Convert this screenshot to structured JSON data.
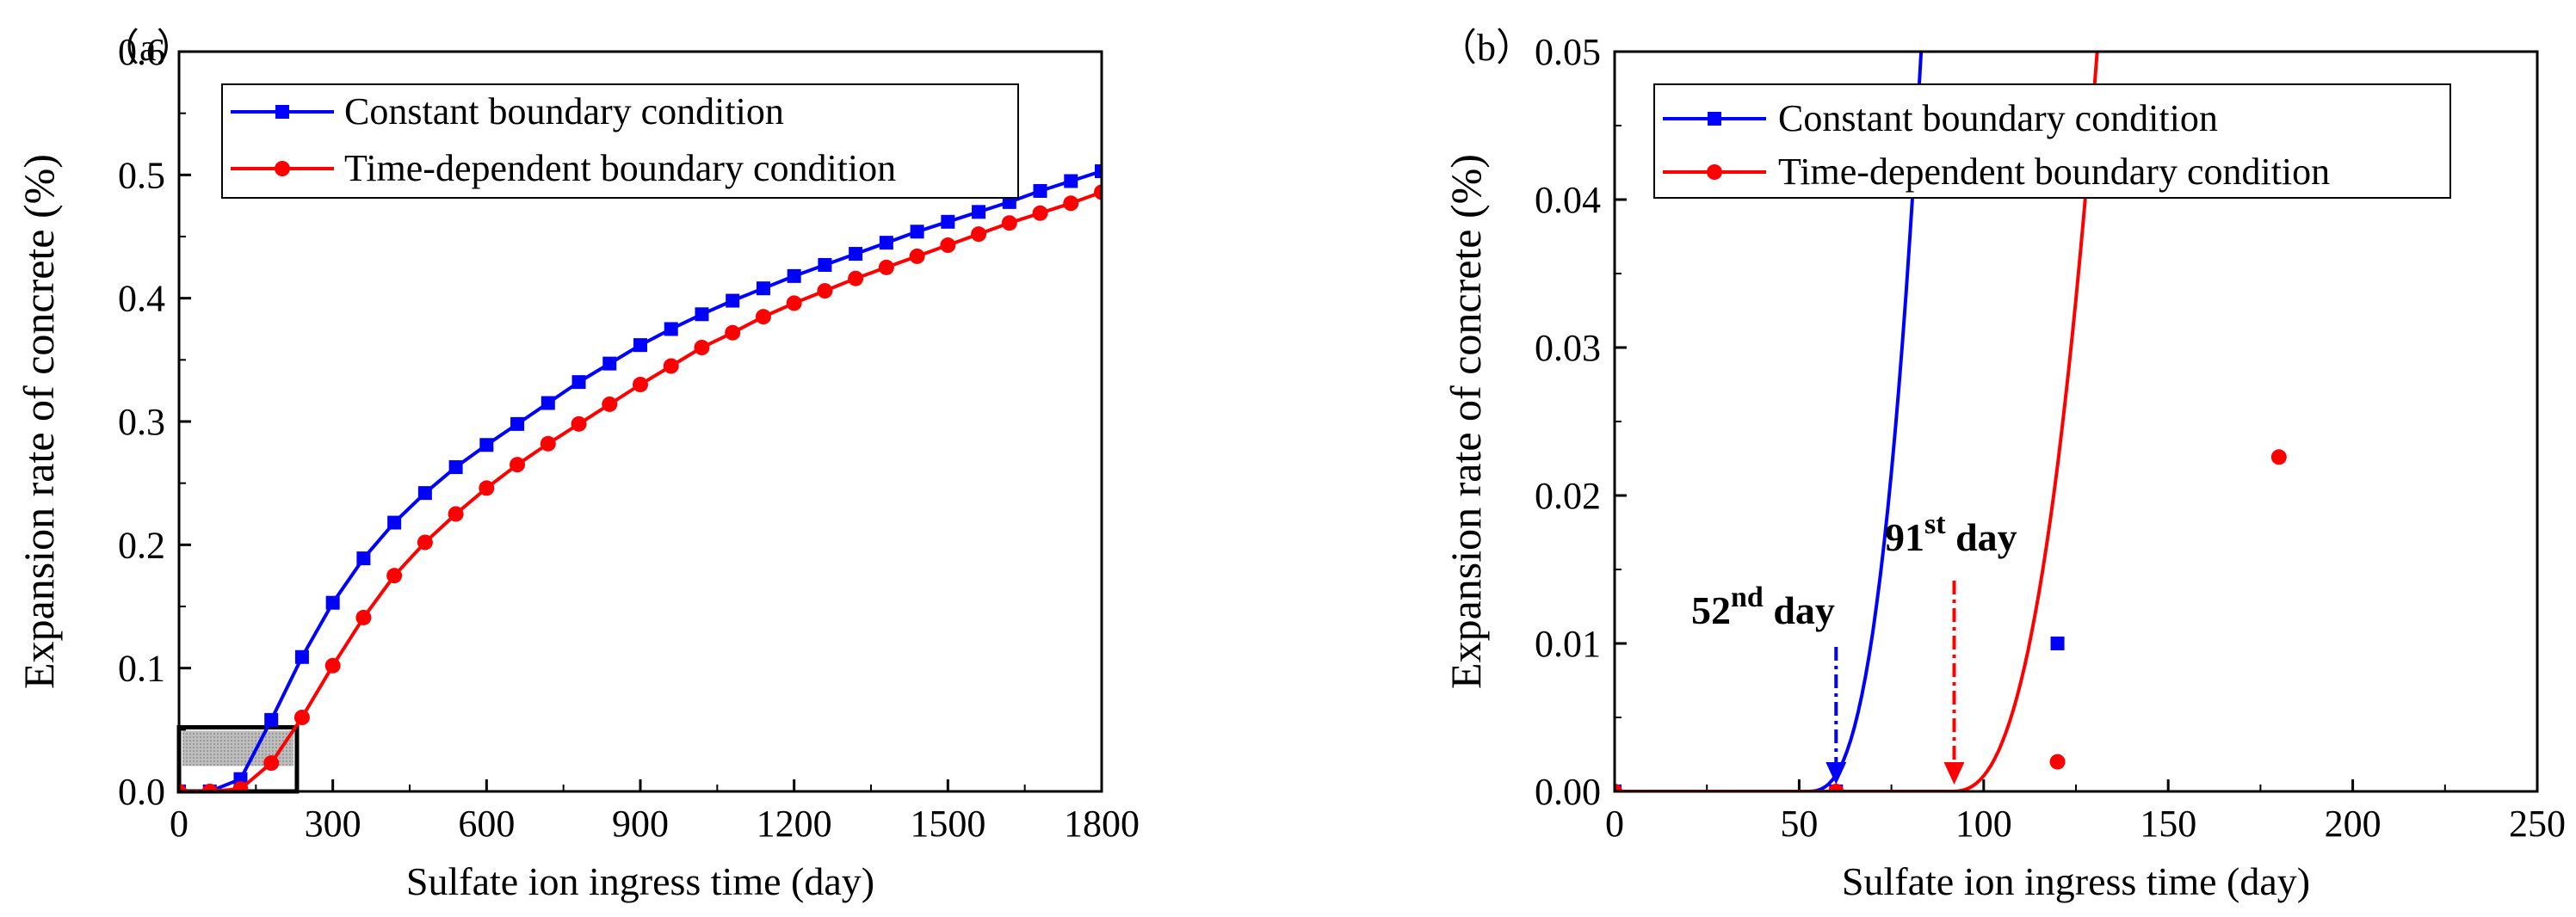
{
  "chart_data": [
    {
      "panel_label": "（a）",
      "type": "line",
      "xlabel": "Sulfate ion  ingress time (day)",
      "ylabel": "Expansion rate  of concrete (%)",
      "xlim": [
        0,
        1800
      ],
      "ylim": [
        0,
        0.6
      ],
      "xticks": [
        "0",
        "300",
        "600",
        "900",
        "1200",
        "1500",
        "1800"
      ],
      "yticks": [
        "0.0",
        "0.1",
        "0.2",
        "0.3",
        "0.4",
        "0.5",
        "0.6"
      ],
      "zoom_box": {
        "x_range": [
          0,
          230
        ],
        "y_range": [
          0,
          0.052
        ]
      },
      "legend": "top-left",
      "series": [
        {
          "name": "Constant boundary condition",
          "color": "#0000ff",
          "marker": "square",
          "x": [
            0,
            60,
            120,
            180,
            240,
            300,
            360,
            420,
            480,
            540,
            600,
            660,
            720,
            780,
            840,
            900,
            960,
            1020,
            1080,
            1140,
            1200,
            1260,
            1320,
            1380,
            1440,
            1500,
            1560,
            1620,
            1680,
            1740,
            1800
          ],
          "y": [
            0.0,
            0.0,
            0.01,
            0.058,
            0.109,
            0.153,
            0.189,
            0.218,
            0.242,
            0.263,
            0.281,
            0.298,
            0.315,
            0.332,
            0.347,
            0.362,
            0.375,
            0.387,
            0.398,
            0.408,
            0.418,
            0.427,
            0.436,
            0.445,
            0.454,
            0.462,
            0.47,
            0.478,
            0.487,
            0.495,
            0.503
          ]
        },
        {
          "name": "Time-dependent boundary condition",
          "color": "#ff0000",
          "marker": "circle",
          "x": [
            0,
            60,
            120,
            180,
            240,
            300,
            360,
            420,
            480,
            540,
            600,
            660,
            720,
            780,
            840,
            900,
            960,
            1020,
            1080,
            1140,
            1200,
            1260,
            1320,
            1380,
            1440,
            1500,
            1560,
            1620,
            1680,
            1740,
            1800
          ],
          "y": [
            0.0,
            0.0,
            0.002,
            0.023,
            0.06,
            0.102,
            0.141,
            0.175,
            0.202,
            0.225,
            0.246,
            0.265,
            0.282,
            0.298,
            0.314,
            0.33,
            0.345,
            0.36,
            0.372,
            0.385,
            0.396,
            0.406,
            0.416,
            0.425,
            0.434,
            0.443,
            0.452,
            0.461,
            0.469,
            0.477,
            0.486
          ]
        }
      ]
    },
    {
      "panel_label": "（b）",
      "type": "line",
      "xlabel": "Sulfate ion  ingress time (day)",
      "ylabel": "Expansion rate  of concrete (%)",
      "xlim": [
        0,
        250
      ],
      "ylim": [
        0,
        0.05
      ],
      "xticks": [
        "0",
        "50",
        "100",
        "150",
        "200",
        "250"
      ],
      "yticks": [
        "0.00",
        "0.01",
        "0.02",
        "0.03",
        "0.04",
        "0.05"
      ],
      "legend": "top-left",
      "series": [
        {
          "name": "Constant boundary condition",
          "color": "#0000ff",
          "marker": "square",
          "curve": {
            "onset": 52,
            "k": 3.32e-06,
            "exp": 2.8
          },
          "markers_x": [
            0,
            60,
            120
          ],
          "markers_y": [
            0.0,
            0.0,
            0.01
          ]
        },
        {
          "name": "Time-dependent boundary condition",
          "color": "#ff0000",
          "marker": "circle",
          "curve": {
            "onset": 91,
            "k": 3.47e-06,
            "exp": 2.6
          },
          "markers_x": [
            0,
            60,
            120,
            180
          ],
          "markers_y": [
            0.0,
            0.0,
            0.002,
            0.0226
          ]
        }
      ],
      "annotations": [
        {
          "base": "52",
          "sup": "nd",
          "suffix": " day",
          "x_day": 60,
          "color": "#0000ff"
        },
        {
          "base": "91",
          "sup": "st",
          "suffix": " day",
          "x_day": 92,
          "color": "#ff0000"
        }
      ]
    }
  ]
}
